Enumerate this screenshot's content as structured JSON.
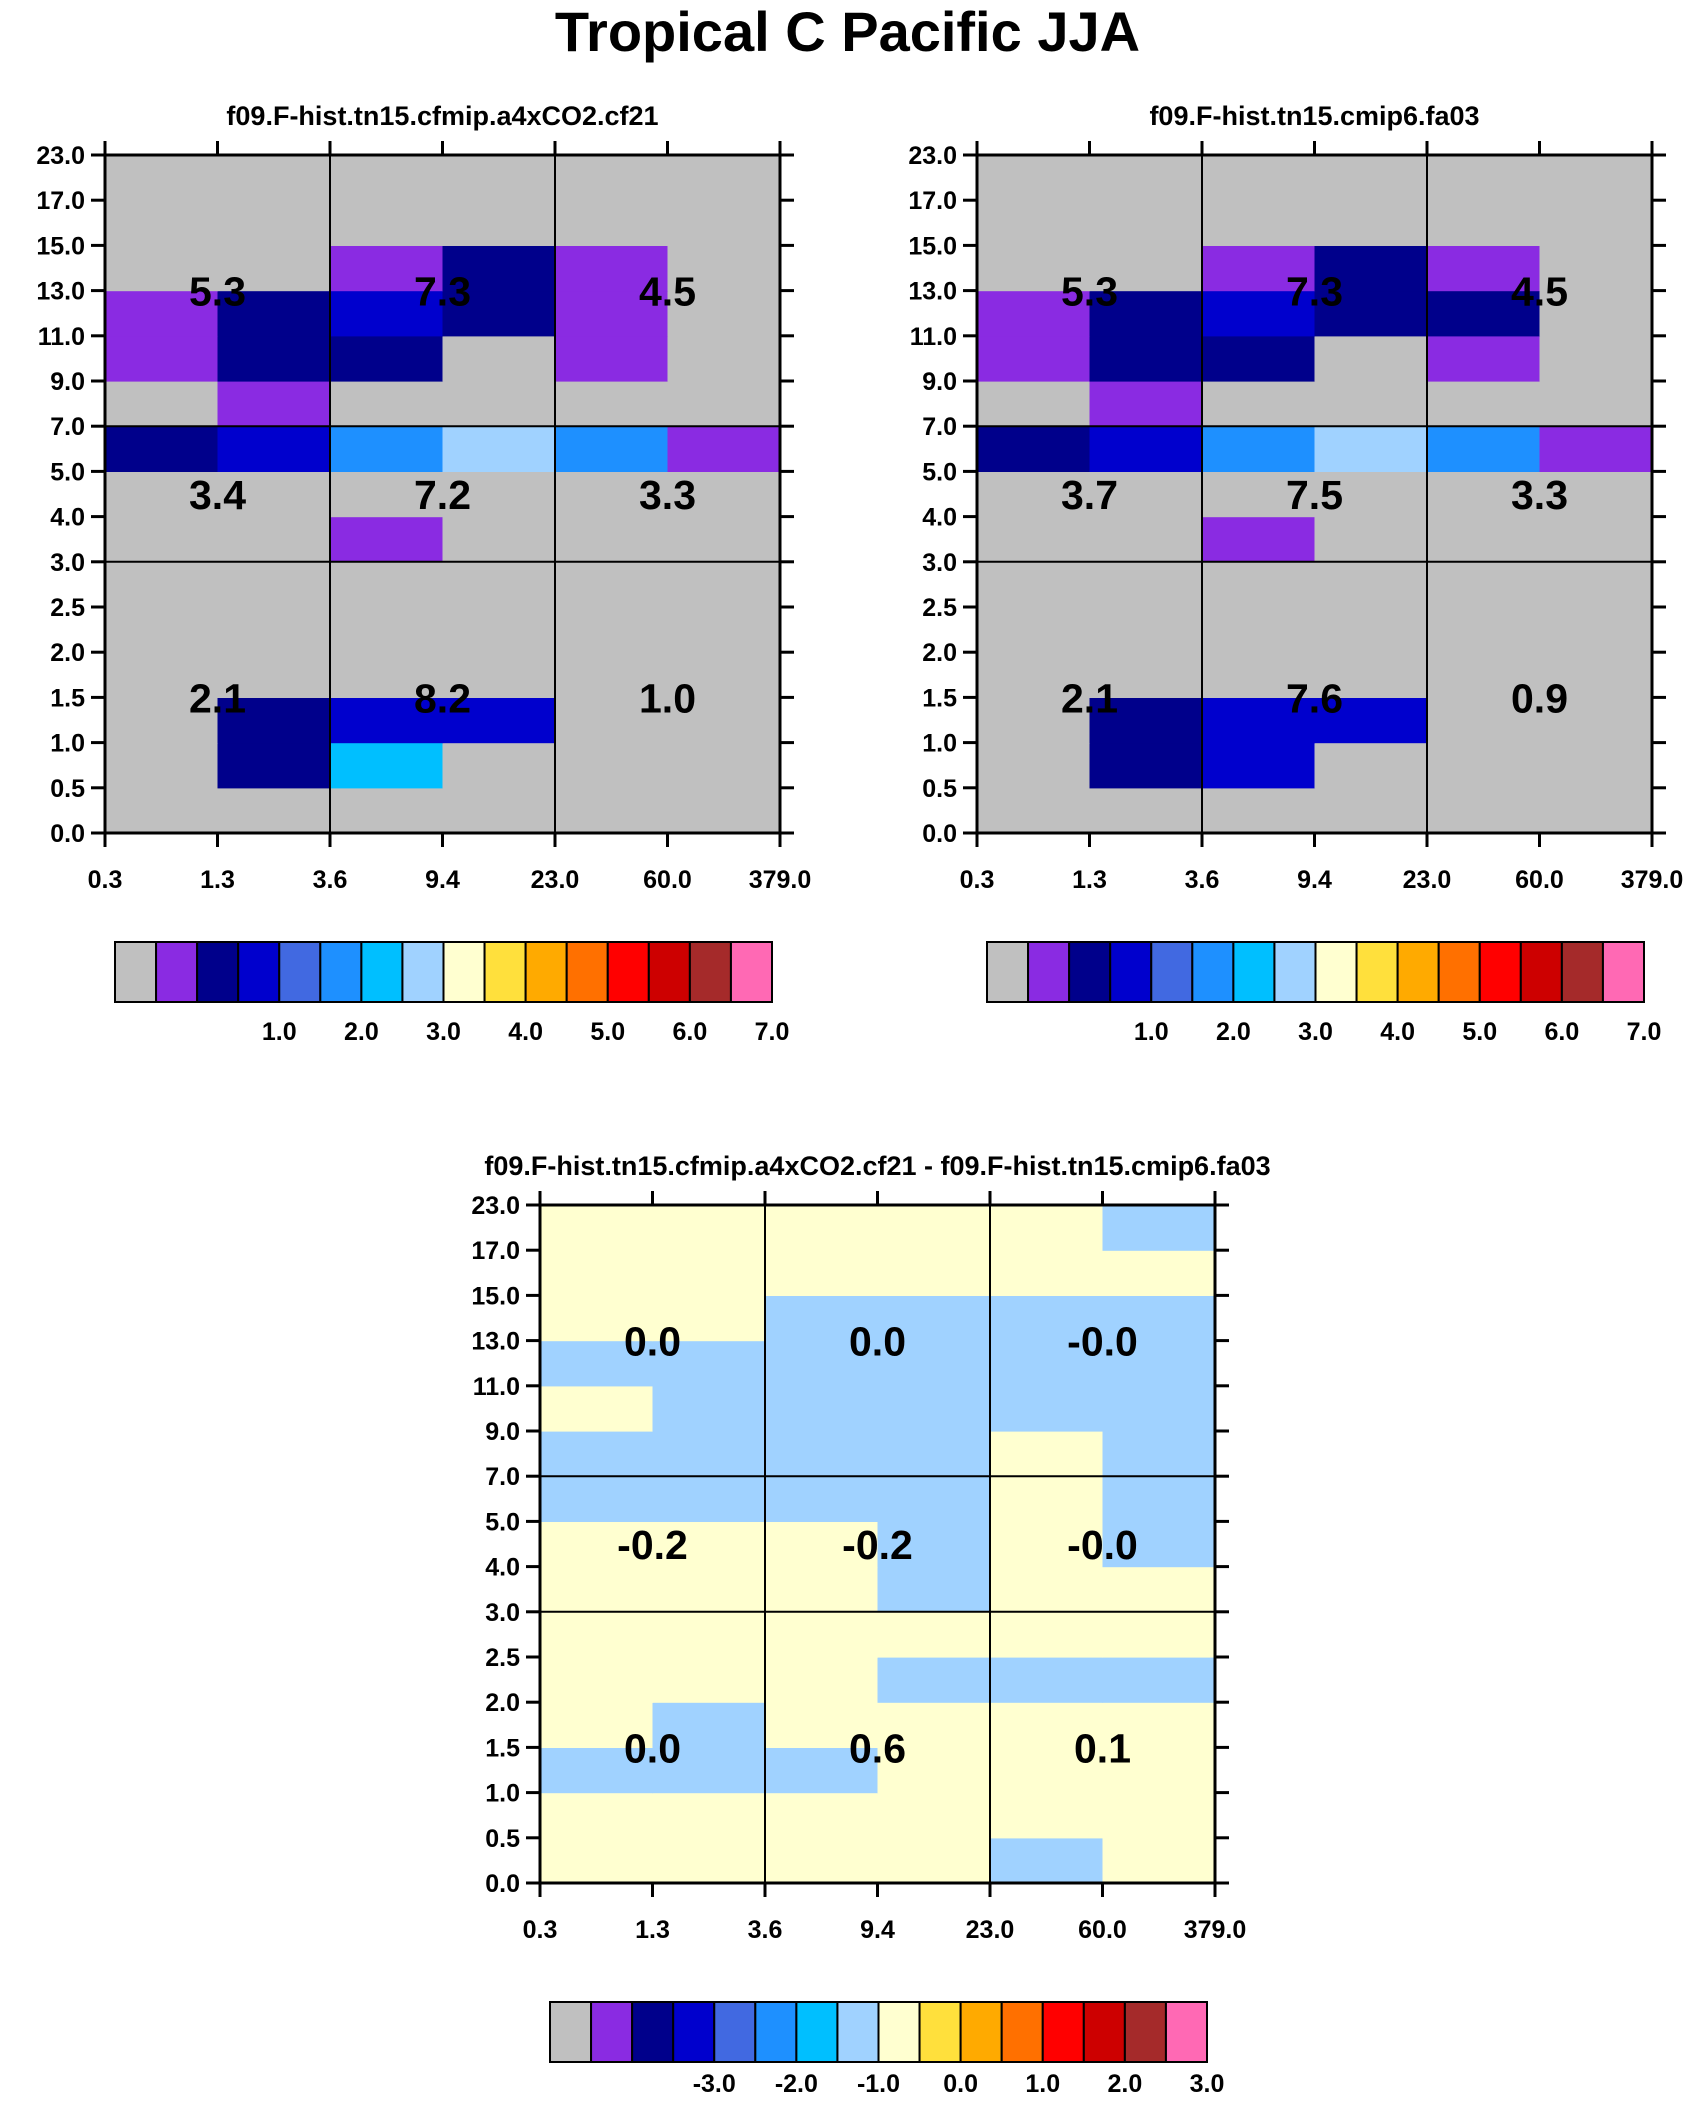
{
  "title": "Tropical C Pacific JJA",
  "chart_data": [
    {
      "type": "heatmap",
      "title": "f09.F-hist.tn15.cfmip.a4xCO2.cf21",
      "x_tick_labels": [
        "0.3",
        "1.3",
        "3.6",
        "9.4",
        "23.0",
        "60.0",
        "379.0"
      ],
      "y_tick_labels": [
        "0.0",
        "0.5",
        "1.0",
        "1.5",
        "2.0",
        "2.5",
        "3.0",
        "4.0",
        "5.0",
        "7.0",
        "9.0",
        "11.0",
        "13.0",
        "15.0",
        "17.0",
        "23.0"
      ],
      "cells": [
        [
          0,
          0,
          0,
          0,
          0,
          0
        ],
        [
          0,
          2,
          6,
          0,
          0,
          0
        ],
        [
          0,
          2,
          3,
          3,
          0,
          0
        ],
        [
          0,
          0,
          0,
          0,
          0,
          0
        ],
        [
          0,
          0,
          0,
          0,
          0,
          0
        ],
        [
          0,
          0,
          0,
          0,
          0,
          0
        ],
        [
          0,
          0,
          1,
          0,
          0,
          0
        ],
        [
          0,
          0,
          0,
          0,
          0,
          0
        ],
        [
          2,
          3,
          5,
          7,
          5,
          1
        ],
        [
          0,
          1,
          0,
          0,
          0,
          0
        ],
        [
          1,
          2,
          2,
          0,
          1,
          0
        ],
        [
          1,
          2,
          3,
          2,
          1,
          0
        ],
        [
          0,
          0,
          1,
          2,
          1,
          0
        ],
        [
          0,
          0,
          0,
          0,
          0,
          0
        ],
        [
          0,
          0,
          0,
          0,
          0,
          0
        ]
      ],
      "block_values": [
        [
          "2.1",
          "8.2",
          "1.0"
        ],
        [
          "3.4",
          "7.2",
          "3.3"
        ],
        [
          "5.3",
          "7.3",
          "4.5"
        ]
      ],
      "colorbar": {
        "colors": [
          "#c0c0c0",
          "#8a2be2",
          "#00008b",
          "#0000cd",
          "#4169e1",
          "#1e90ff",
          "#00bfff",
          "#a0d2ff",
          "#ffffd0",
          "#ffe03c",
          "#ffaa00",
          "#ff7000",
          "#ff0000",
          "#cd0000",
          "#a52a2a",
          "#ff69b4"
        ],
        "labels": [
          "1.0",
          "2.0",
          "3.0",
          "4.0",
          "5.0",
          "6.0",
          "7.0"
        ]
      }
    },
    {
      "type": "heatmap",
      "title": "f09.F-hist.tn15.cmip6.fa03",
      "x_tick_labels": [
        "0.3",
        "1.3",
        "3.6",
        "9.4",
        "23.0",
        "60.0",
        "379.0"
      ],
      "y_tick_labels": [
        "0.0",
        "0.5",
        "1.0",
        "1.5",
        "2.0",
        "2.5",
        "3.0",
        "4.0",
        "5.0",
        "7.0",
        "9.0",
        "11.0",
        "13.0",
        "15.0",
        "17.0",
        "23.0"
      ],
      "cells": [
        [
          0,
          0,
          0,
          0,
          0,
          0
        ],
        [
          0,
          2,
          3,
          0,
          0,
          0
        ],
        [
          0,
          2,
          3,
          3,
          0,
          0
        ],
        [
          0,
          0,
          0,
          0,
          0,
          0
        ],
        [
          0,
          0,
          0,
          0,
          0,
          0
        ],
        [
          0,
          0,
          0,
          0,
          0,
          0
        ],
        [
          0,
          0,
          1,
          0,
          0,
          0
        ],
        [
          0,
          0,
          0,
          0,
          0,
          0
        ],
        [
          2,
          3,
          5,
          7,
          5,
          1
        ],
        [
          0,
          1,
          0,
          0,
          0,
          0
        ],
        [
          1,
          2,
          2,
          0,
          1,
          0
        ],
        [
          1,
          2,
          3,
          2,
          2,
          0
        ],
        [
          0,
          0,
          1,
          2,
          1,
          0
        ],
        [
          0,
          0,
          0,
          0,
          0,
          0
        ],
        [
          0,
          0,
          0,
          0,
          0,
          0
        ]
      ],
      "block_values": [
        [
          "2.1",
          "7.6",
          "0.9"
        ],
        [
          "3.7",
          "7.5",
          "3.3"
        ],
        [
          "5.3",
          "7.3",
          "4.5"
        ]
      ],
      "colorbar": {
        "colors": [
          "#c0c0c0",
          "#8a2be2",
          "#00008b",
          "#0000cd",
          "#4169e1",
          "#1e90ff",
          "#00bfff",
          "#a0d2ff",
          "#ffffd0",
          "#ffe03c",
          "#ffaa00",
          "#ff7000",
          "#ff0000",
          "#cd0000",
          "#a52a2a",
          "#ff69b4"
        ],
        "labels": [
          "1.0",
          "2.0",
          "3.0",
          "4.0",
          "5.0",
          "6.0",
          "7.0"
        ]
      }
    },
    {
      "type": "heatmap",
      "title": "f09.F-hist.tn15.cfmip.a4xCO2.cf21 - f09.F-hist.tn15.cmip6.fa03",
      "x_tick_labels": [
        "0.3",
        "1.3",
        "3.6",
        "9.4",
        "23.0",
        "60.0",
        "379.0"
      ],
      "y_tick_labels": [
        "0.0",
        "0.5",
        "1.0",
        "1.5",
        "2.0",
        "2.5",
        "3.0",
        "4.0",
        "5.0",
        "7.0",
        "9.0",
        "11.0",
        "13.0",
        "15.0",
        "17.0",
        "23.0"
      ],
      "cells": [
        [
          8,
          8,
          8,
          8,
          7,
          8
        ],
        [
          8,
          8,
          8,
          8,
          8,
          8
        ],
        [
          7,
          7,
          7,
          8,
          8,
          8
        ],
        [
          8,
          7,
          8,
          8,
          8,
          8
        ],
        [
          8,
          8,
          8,
          7,
          7,
          7
        ],
        [
          8,
          8,
          8,
          8,
          8,
          8
        ],
        [
          8,
          8,
          8,
          7,
          8,
          8
        ],
        [
          8,
          8,
          8,
          7,
          8,
          7
        ],
        [
          7,
          7,
          7,
          7,
          8,
          7
        ],
        [
          7,
          7,
          7,
          7,
          8,
          7
        ],
        [
          8,
          7,
          7,
          7,
          7,
          7
        ],
        [
          7,
          7,
          7,
          7,
          7,
          7
        ],
        [
          8,
          8,
          7,
          7,
          7,
          7
        ],
        [
          8,
          8,
          8,
          8,
          8,
          8
        ],
        [
          8,
          8,
          8,
          8,
          8,
          7
        ]
      ],
      "block_values": [
        [
          "0.0",
          "0.6",
          "0.1"
        ],
        [
          "-0.2",
          "-0.2",
          "-0.0"
        ],
        [
          "0.0",
          "0.0",
          "-0.0"
        ]
      ],
      "colorbar": {
        "colors": [
          "#c0c0c0",
          "#8a2be2",
          "#00008b",
          "#0000cd",
          "#4169e1",
          "#1e90ff",
          "#00bfff",
          "#a0d2ff",
          "#ffffd0",
          "#ffe03c",
          "#ffaa00",
          "#ff7000",
          "#ff0000",
          "#cd0000",
          "#a52a2a",
          "#ff69b4"
        ],
        "labels": [
          "-3.0",
          "-2.0",
          "-1.0",
          "0.0",
          "1.0",
          "2.0",
          "3.0"
        ]
      }
    }
  ]
}
